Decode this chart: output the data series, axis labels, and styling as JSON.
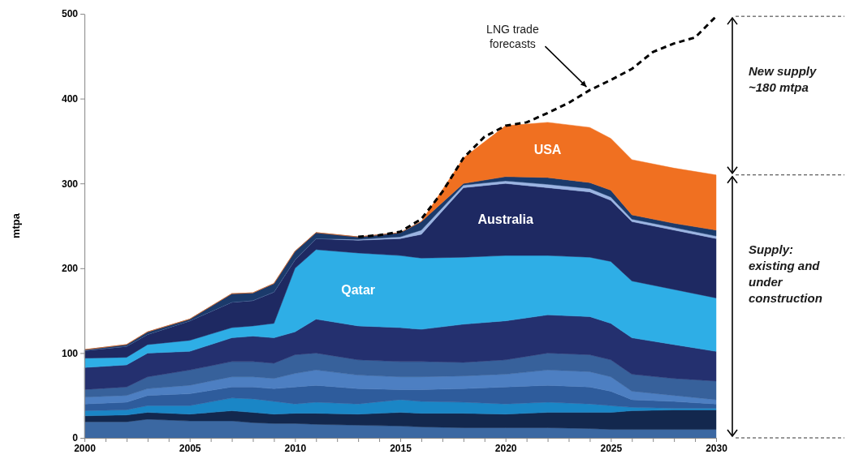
{
  "chart_data": {
    "type": "area",
    "stacked": true,
    "ylabel": "mtpa",
    "x": [
      2000,
      2002,
      2003,
      2005,
      2007,
      2008,
      2009,
      2010,
      2011,
      2013,
      2015,
      2016,
      2018,
      2020,
      2022,
      2024,
      2025,
      2026,
      2028,
      2030
    ],
    "xlim": [
      2000,
      2030
    ],
    "xticks": [
      2000,
      {
        "value": 2001,
        "label": null
      },
      {
        "value": 2002,
        "label": null
      },
      {
        "value": 2003,
        "label": null
      },
      {
        "value": 2004,
        "label": null
      },
      2005,
      {
        "value": 2006,
        "label": null
      },
      {
        "value": 2007,
        "label": null
      },
      {
        "value": 2008,
        "label": null
      },
      {
        "value": 2009,
        "label": null
      },
      2010,
      {
        "value": 2011,
        "label": null
      },
      {
        "value": 2012,
        "label": null
      },
      {
        "value": 2013,
        "label": null
      },
      {
        "value": 2014,
        "label": null
      },
      2015,
      {
        "value": 2016,
        "label": null
      },
      {
        "value": 2017,
        "label": null
      },
      {
        "value": 2018,
        "label": null
      },
      {
        "value": 2019,
        "label": null
      },
      2020,
      {
        "value": 2021,
        "label": null
      },
      {
        "value": 2022,
        "label": null
      },
      {
        "value": 2023,
        "label": null
      },
      {
        "value": 2024,
        "label": null
      },
      2025,
      {
        "value": 2026,
        "label": null
      },
      {
        "value": 2027,
        "label": null
      },
      {
        "value": 2028,
        "label": null
      },
      {
        "value": 2029,
        "label": null
      },
      2030
    ],
    "ylim": [
      0,
      500
    ],
    "yticks": [
      0,
      100,
      200,
      300,
      400,
      500
    ],
    "grid": false,
    "legend": false,
    "series": [
      {
        "color": "#3b68a2",
        "values": [
          19,
          19,
          22,
          20,
          20,
          18,
          17,
          17,
          16,
          15,
          14,
          13,
          12,
          12,
          12,
          11,
          10,
          10,
          10,
          10
        ]
      },
      {
        "color": "#13284e",
        "values": [
          7,
          8,
          8,
          8,
          12,
          12,
          11,
          12,
          13,
          13,
          16,
          16,
          17,
          16,
          18,
          19,
          20,
          22,
          23,
          23
        ]
      },
      {
        "color": "#1a86c6",
        "values": [
          6,
          6,
          8,
          10,
          15,
          16,
          15,
          11,
          13,
          12,
          15,
          14,
          13,
          12,
          12,
          10,
          8,
          4,
          2,
          2
        ]
      },
      {
        "color": "#2e5c9c",
        "values": [
          8,
          9,
          12,
          14,
          13,
          14,
          15,
          20,
          20,
          18,
          12,
          14,
          16,
          20,
          20,
          20,
          17,
          9,
          8,
          5
        ]
      },
      {
        "color": "#4d7fc2",
        "values": [
          8,
          8,
          8,
          10,
          12,
          12,
          12,
          16,
          18,
          16,
          15,
          15,
          15,
          15,
          18,
          18,
          17,
          10,
          7,
          5
        ]
      },
      {
        "color": "#37619b",
        "values": [
          9,
          10,
          14,
          18,
          18,
          18,
          18,
          22,
          20,
          18,
          18,
          18,
          16,
          17,
          20,
          20,
          20,
          20,
          20,
          22
        ]
      },
      {
        "color": "#24306f",
        "values": [
          26,
          26,
          28,
          22,
          28,
          30,
          30,
          27,
          40,
          40,
          40,
          38,
          45,
          46,
          45,
          45,
          43,
          43,
          40,
          35
        ]
      },
      {
        "name": "Qatar",
        "color": "#2eaee6",
        "values": [
          11,
          9,
          10,
          13,
          12,
          12,
          17,
          75,
          82,
          86,
          85,
          84,
          79,
          77,
          70,
          70,
          73,
          67,
          65,
          63
        ]
      },
      {
        "name": "Australia",
        "color": "#1e2962",
        "values": [
          9,
          13,
          12,
          23,
          30,
          30,
          37,
          10,
          13,
          15,
          20,
          28,
          82,
          85,
          80,
          77,
          72,
          70,
          70,
          70
        ]
      },
      {
        "color": "#9bb4e2",
        "values": [
          0,
          0,
          0,
          0,
          0,
          0,
          0,
          0,
          0,
          1,
          2,
          5,
          3,
          3,
          4,
          4,
          4,
          3,
          3,
          3
        ]
      },
      {
        "color": "#1b3a6b",
        "values": [
          1,
          2,
          3,
          2,
          10,
          9,
          10,
          10,
          7,
          3,
          5,
          10,
          2,
          5,
          8,
          7,
          8,
          5,
          5,
          7
        ]
      },
      {
        "name": "USA",
        "color": "#f07021",
        "values": [
          0,
          0,
          0,
          0,
          0,
          0,
          0,
          0,
          0,
          0,
          0,
          0,
          30,
          60,
          65,
          65,
          61,
          65,
          65,
          65
        ]
      },
      {
        "type": "line",
        "color": "#000000",
        "line_style": "dashed",
        "x": [
          2013,
          2014,
          2015,
          2016,
          2017,
          2018,
          2019,
          2020,
          2021,
          2022,
          2023,
          2024,
          2025,
          2026,
          2027,
          2028,
          2029,
          2030
        ],
        "values": [
          237,
          239,
          243,
          258,
          290,
          330,
          355,
          368,
          372,
          383,
          395,
          410,
          422,
          435,
          455,
          465,
          472,
          497
        ]
      }
    ],
    "annotations": [
      {
        "text": "LNG trade forecasts",
        "x": 2024,
        "y": 410
      },
      "New supply ~180 mtpa",
      "Supply: existing and under construction"
    ]
  }
}
